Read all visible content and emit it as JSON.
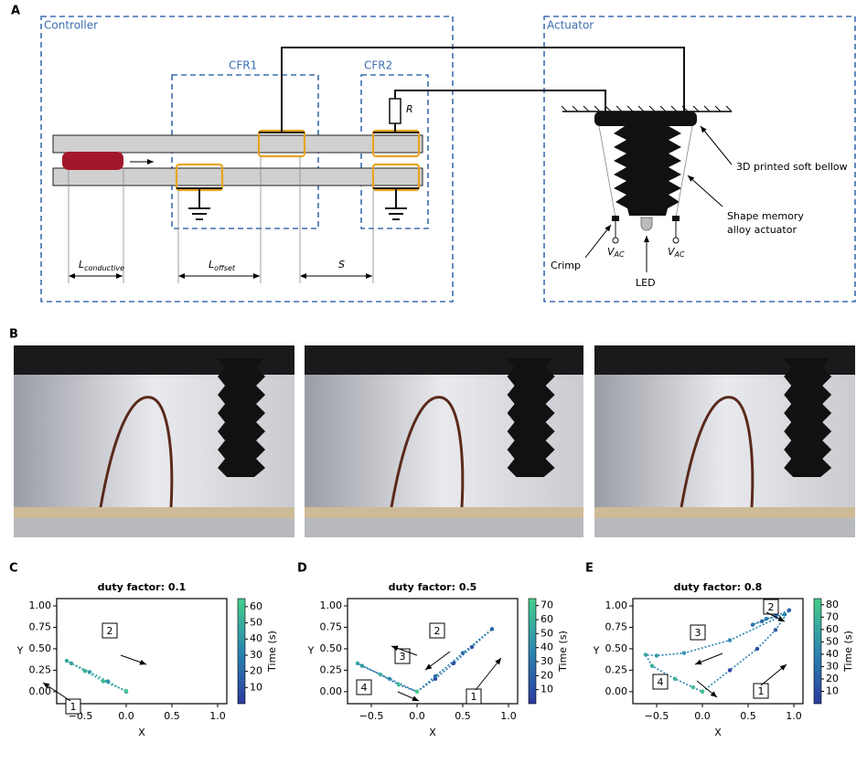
{
  "figure": {
    "panels": [
      "A",
      "B",
      "C",
      "D",
      "E"
    ]
  },
  "diagram": {
    "controller": "Controller",
    "cfr1": "CFR1",
    "cfr2": "CFR2",
    "actuator": "Actuator",
    "resistor": "R",
    "l_conductive": {
      "main": "L",
      "sub": "conductive"
    },
    "l_offset": {
      "main": "L",
      "sub": "offset"
    },
    "spacing": "S",
    "bellow": "3D printed soft bellow",
    "sma": [
      "Shape memory",
      "alloy actuator"
    ],
    "crimp": "Crimp",
    "led": "LED",
    "vac": [
      {
        "main": "V",
        "sub": "AC"
      },
      {
        "main": "V",
        "sub": "AC"
      }
    ]
  },
  "chart_data": [
    {
      "type": "line",
      "title": "duty factor: 0.1",
      "x_label": "X",
      "y_label": "Y",
      "colorbar_label": "Time (s)",
      "colormap": [
        "#2c3a9e",
        "#2b86b0",
        "#46cf8c"
      ],
      "x": [
        0,
        -0.2,
        -0.4,
        -0.6,
        -0.65,
        -0.45,
        -0.25,
        0
      ],
      "y": [
        0,
        0.12,
        0.23,
        0.33,
        0.36,
        0.24,
        0.12,
        0.01
      ],
      "time": [
        35,
        38,
        41,
        44,
        47,
        52,
        57,
        62
      ],
      "xlim": [
        -0.76,
        1.1
      ],
      "ylim": [
        -0.14,
        1.085
      ],
      "clim": [
        0,
        65
      ],
      "xticks": [
        {
          "value": -0.5,
          "label": "−0.5"
        },
        {
          "value": 0,
          "label": "0.0"
        },
        {
          "value": 0.5,
          "label": "0.5"
        },
        {
          "value": 1,
          "label": "1.0"
        }
      ],
      "yticks": [
        {
          "value": 0,
          "label": "0.00"
        },
        {
          "value": 0.25,
          "label": "0.25"
        },
        {
          "value": 0.5,
          "label": "0.50"
        },
        {
          "value": 0.75,
          "label": "0.75"
        },
        {
          "value": 1,
          "label": "1.00"
        }
      ],
      "cticks": [
        10,
        20,
        30,
        40,
        50,
        60
      ],
      "annotations": [
        "1",
        "2"
      ]
    },
    {
      "type": "line",
      "title": "duty factor: 0.5",
      "x_label": "X",
      "y_label": "Y",
      "colorbar_label": "Time (s)",
      "colormap": [
        "#2c3a9e",
        "#2b86b0",
        "#46cf8c"
      ],
      "x": [
        0,
        0.2,
        0.4,
        0.6,
        0.82,
        0.5,
        0.2,
        0,
        -0.3,
        -0.6,
        -0.65,
        -0.4,
        -0.2,
        0
      ],
      "y": [
        0,
        0.15,
        0.33,
        0.52,
        0.73,
        0.45,
        0.18,
        0,
        0.15,
        0.3,
        0.33,
        0.2,
        0.08,
        0
      ],
      "time": [
        0,
        5,
        10,
        15,
        20,
        24,
        28,
        32,
        40,
        48,
        52,
        60,
        68,
        75
      ],
      "xlim": [
        -0.76,
        1.1
      ],
      "ylim": [
        -0.14,
        1.085
      ],
      "clim": [
        0,
        75
      ],
      "xticks": [
        {
          "value": -0.5,
          "label": "−0.5"
        },
        {
          "value": 0,
          "label": "0.0"
        },
        {
          "value": 0.5,
          "label": "0.5"
        },
        {
          "value": 1,
          "label": "1.0"
        }
      ],
      "yticks": [
        {
          "value": 0,
          "label": "0.00"
        },
        {
          "value": 0.25,
          "label": "0.25"
        },
        {
          "value": 0.5,
          "label": "0.50"
        },
        {
          "value": 0.75,
          "label": "0.75"
        },
        {
          "value": 1,
          "label": "1.00"
        }
      ],
      "cticks": [
        10,
        20,
        30,
        40,
        50,
        60,
        70
      ],
      "annotations": [
        "1",
        "2",
        "3",
        "4"
      ]
    },
    {
      "type": "line",
      "title": "duty factor: 0.8",
      "x_label": "X",
      "y_label": "Y",
      "colorbar_label": "Time (s)",
      "colormap": [
        "#2c3a9e",
        "#2b86b0",
        "#46cf8c"
      ],
      "x": [
        0,
        0.3,
        0.6,
        0.8,
        0.95,
        0.8,
        0.65,
        0.55,
        0.7,
        0.9,
        0.3,
        -0.2,
        -0.5,
        -0.62,
        -0.55,
        -0.3,
        -0.1,
        0
      ],
      "y": [
        0,
        0.25,
        0.5,
        0.72,
        0.95,
        0.88,
        0.82,
        0.78,
        0.85,
        0.9,
        0.6,
        0.45,
        0.42,
        0.43,
        0.3,
        0.15,
        0.05,
        0
      ],
      "time": [
        0,
        5,
        10,
        15,
        20,
        24,
        28,
        32,
        36,
        40,
        45,
        50,
        55,
        60,
        65,
        70,
        75,
        80
      ],
      "xlim": [
        -0.76,
        1.1
      ],
      "ylim": [
        -0.14,
        1.085
      ],
      "clim": [
        0,
        85
      ],
      "xticks": [
        {
          "value": -0.5,
          "label": "−0.5"
        },
        {
          "value": 0,
          "label": "0.0"
        },
        {
          "value": 0.5,
          "label": "0.5"
        },
        {
          "value": 1,
          "label": "1.0"
        }
      ],
      "yticks": [
        {
          "value": 0,
          "label": "0.00"
        },
        {
          "value": 0.25,
          "label": "0.25"
        },
        {
          "value": 0.5,
          "label": "0.50"
        },
        {
          "value": 0.75,
          "label": "0.75"
        },
        {
          "value": 1,
          "label": "1.00"
        }
      ],
      "cticks": [
        10,
        20,
        30,
        40,
        50,
        60,
        70,
        80
      ],
      "annotations": [
        "1",
        "2",
        "3",
        "4"
      ]
    }
  ]
}
